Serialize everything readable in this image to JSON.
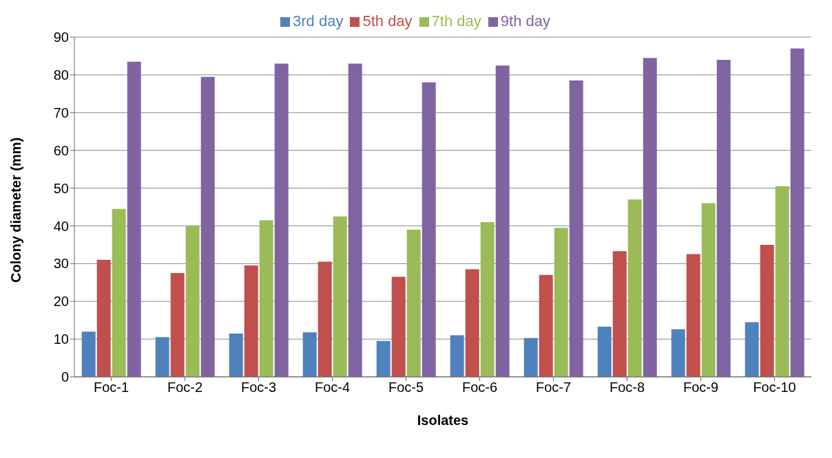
{
  "chart_data": {
    "type": "bar",
    "xlabel": "Isolates",
    "ylabel": "Colony diameter (mm)",
    "categories": [
      "Foc-1",
      "Foc-2",
      "Foc-3",
      "Foc-4",
      "Foc-5",
      "Foc-6",
      "Foc-7",
      "Foc-8",
      "Foc-9",
      "Foc-10"
    ],
    "series": [
      {
        "name": "3rd day",
        "color": "#4f81bd",
        "values": [
          12,
          10.5,
          11.5,
          11.8,
          9.5,
          11,
          10.3,
          13.3,
          12.6,
          14.5
        ]
      },
      {
        "name": "5th day",
        "color": "#c0504d",
        "values": [
          31,
          27.5,
          29.5,
          30.5,
          26.5,
          28.5,
          27,
          33.3,
          32.5,
          35
        ]
      },
      {
        "name": "7th day",
        "color": "#9bbb59",
        "values": [
          44.5,
          40,
          41.5,
          42.5,
          39,
          41,
          39.5,
          47,
          46,
          50.5
        ]
      },
      {
        "name": "9th day",
        "color": "#8064a2",
        "values": [
          83.5,
          79.5,
          83,
          83,
          78,
          82.5,
          78.5,
          84.5,
          84,
          87
        ]
      }
    ],
    "ylim": [
      0,
      90
    ],
    "yticks": [
      0,
      10,
      20,
      30,
      40,
      50,
      60,
      70,
      80,
      90
    ],
    "grid": "y",
    "legend": "top"
  }
}
